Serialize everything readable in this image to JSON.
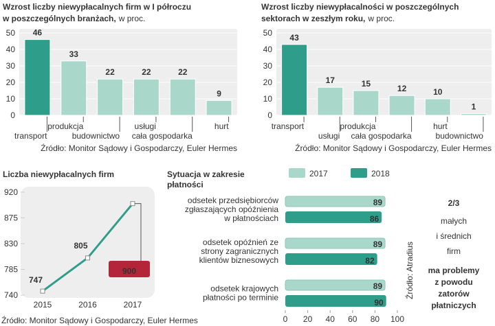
{
  "chart_data": [
    {
      "type": "bar",
      "title": [
        "Wzrost liczby niewypłacalnych firm w I półroczu",
        "w poszczególnych branżach,"
      ],
      "unit": "w proc.",
      "categories": [
        "transport",
        "produkcja",
        "budownictwo",
        "usługi",
        "cała gospodarka",
        "hurt"
      ],
      "values": [
        46,
        33,
        22,
        22,
        22,
        9
      ],
      "colors": [
        "#2e9e8a",
        "#a9d8cb",
        "#a9d8cb",
        "#a9d8cb",
        "#a9d8cb",
        "#a9d8cb"
      ],
      "ylim": [
        0,
        50
      ],
      "yticks": [
        0,
        10,
        20,
        30,
        40,
        50
      ],
      "source": "Źródło: Monitor Sądowy i Gospodarczy, Euler Hermes"
    },
    {
      "type": "bar",
      "title": [
        "Wzrost liczby niewypłacalności w poszczególnych",
        "sektorach w zeszłym roku,"
      ],
      "unit": "w proc.",
      "categories": [
        "transport",
        "usługi",
        "produkcja",
        "cała gospodarka",
        "hurt",
        "budownictwo"
      ],
      "values": [
        43,
        17,
        15,
        12,
        10,
        1
      ],
      "colors": [
        "#2e9e8a",
        "#a9d8cb",
        "#a9d8cb",
        "#a9d8cb",
        "#a9d8cb",
        "#a9d8cb"
      ],
      "ylim": [
        0,
        50
      ],
      "yticks": [
        0,
        10,
        20,
        30,
        40,
        50
      ],
      "source": "Źródło: Monitor Sądowy i Gospodarczy, Euler Hermes"
    },
    {
      "type": "line",
      "title": [
        "Liczba niewypłacalnych firm"
      ],
      "categories": [
        "2015",
        "2016",
        "2017"
      ],
      "values": [
        747,
        805,
        900
      ],
      "color": "#2e9e8a",
      "highlight_color": "#b5253a",
      "ylim": [
        740,
        920
      ],
      "yticks": [
        740,
        785,
        830,
        875,
        920
      ],
      "source": "Źródło: Monitor Sądowy i Gospodarczy, Euler Hermes"
    },
    {
      "type": "hbar",
      "title": [
        "Sytuacja w zakresie",
        "płatności"
      ],
      "categories": [
        [
          "odsetek przedsiębiorców",
          "zgłaszających opóźnienia",
          "w płatnościach"
        ],
        [
          "odsetek opóźnień ze",
          "strony zagranicznych",
          "klientów biznesowych"
        ],
        [
          "odsetek krajowych",
          "płatności po terminie"
        ]
      ],
      "series": [
        {
          "name": "2017",
          "color": "#a9d8cb",
          "values": [
            89,
            89,
            89
          ]
        },
        {
          "name": "2018",
          "color": "#2e9e8a",
          "values": [
            86,
            82,
            90
          ]
        }
      ],
      "xlim": [
        0,
        100
      ],
      "xticks": [
        0,
        20,
        40,
        60,
        80,
        100
      ],
      "source": "Źródło: Atradius"
    }
  ],
  "callout": {
    "headline": "2/3",
    "highlight": [
      "małych",
      "i średnich",
      "firm"
    ],
    "text": [
      "ma problemy",
      "z powodu",
      "zatorów",
      "płatniczych"
    ]
  }
}
